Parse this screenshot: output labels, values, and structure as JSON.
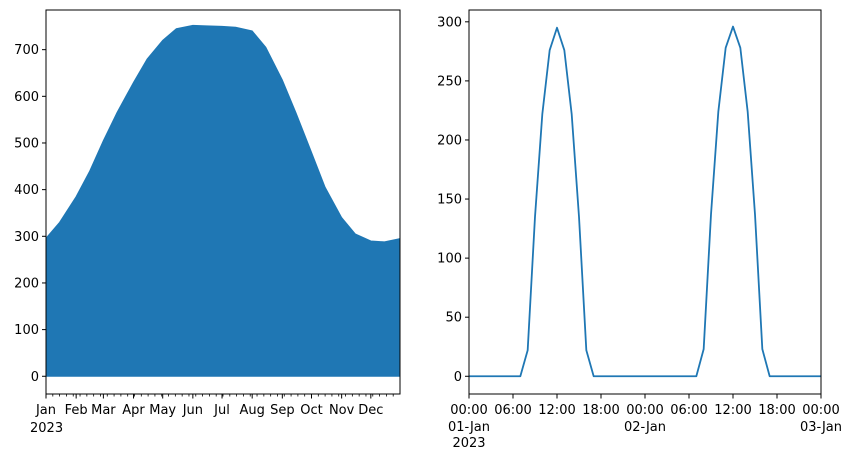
{
  "chart_data": [
    {
      "type": "area",
      "title": "",
      "xlabel": "",
      "ylabel": "",
      "grid": false,
      "xlim": [
        "2023-01-01",
        "2023-12-31"
      ],
      "ylim": [
        -38,
        785
      ],
      "yticks": [
        0,
        100,
        200,
        300,
        400,
        500,
        600,
        700
      ],
      "xticks": [
        {
          "date": "2023-01-01",
          "label": "Jan"
        },
        {
          "date": "2023-02-01",
          "label": "Feb"
        },
        {
          "date": "2023-03-01",
          "label": "Mar"
        },
        {
          "date": "2023-04-01",
          "label": "Apr"
        },
        {
          "date": "2023-05-01",
          "label": "May"
        },
        {
          "date": "2023-06-01",
          "label": "Jun"
        },
        {
          "date": "2023-07-01",
          "label": "Jul"
        },
        {
          "date": "2023-08-01",
          "label": "Aug"
        },
        {
          "date": "2023-09-01",
          "label": "Sep"
        },
        {
          "date": "2023-10-01",
          "label": "Oct"
        },
        {
          "date": "2023-11-01",
          "label": "Nov"
        },
        {
          "date": "2023-12-01",
          "label": "Dec"
        }
      ],
      "x_offset_label": "2023",
      "envelope": {
        "x": [
          "2023-01-01",
          "2023-01-15",
          "2023-02-01",
          "2023-02-15",
          "2023-03-01",
          "2023-03-15",
          "2023-04-01",
          "2023-04-15",
          "2023-05-01",
          "2023-05-15",
          "2023-06-01",
          "2023-06-15",
          "2023-07-01",
          "2023-07-15",
          "2023-08-01",
          "2023-08-15",
          "2023-09-01",
          "2023-09-15",
          "2023-10-01",
          "2023-10-15",
          "2023-11-01",
          "2023-11-15",
          "2023-12-01",
          "2023-12-15",
          "2023-12-31"
        ],
        "upper": [
          296,
          330,
          385,
          440,
          505,
          565,
          630,
          680,
          720,
          745,
          752,
          751,
          750,
          748,
          740,
          705,
          635,
          565,
          480,
          405,
          340,
          305,
          290,
          288,
          295
        ],
        "lower": [
          0,
          0,
          0,
          0,
          0,
          0,
          0,
          0,
          0,
          0,
          0,
          0,
          0,
          0,
          0,
          0,
          0,
          0,
          0,
          0,
          0,
          0,
          0,
          0,
          0
        ]
      },
      "color": "#1f77b4"
    },
    {
      "type": "line",
      "title": "",
      "xlabel": "",
      "ylabel": "",
      "grid": false,
      "xlim": [
        "2023-01-01T00:00",
        "2023-01-03T00:00"
      ],
      "ylim": [
        -15,
        310
      ],
      "yticks": [
        0,
        50,
        100,
        150,
        200,
        250,
        300
      ],
      "xticks": [
        {
          "time": "2023-01-01T00:00",
          "label": "00:00",
          "label2": "01-Jan",
          "label3": "2023"
        },
        {
          "time": "2023-01-01T06:00",
          "label": "06:00",
          "label2": "",
          "label3": ""
        },
        {
          "time": "2023-01-01T12:00",
          "label": "12:00",
          "label2": "",
          "label3": ""
        },
        {
          "time": "2023-01-01T18:00",
          "label": "18:00",
          "label2": "",
          "label3": ""
        },
        {
          "time": "2023-01-02T00:00",
          "label": "00:00",
          "label2": "02-Jan",
          "label3": ""
        },
        {
          "time": "2023-01-02T06:00",
          "label": "06:00",
          "label2": "",
          "label3": ""
        },
        {
          "time": "2023-01-02T12:00",
          "label": "12:00",
          "label2": "",
          "label3": ""
        },
        {
          "time": "2023-01-02T18:00",
          "label": "18:00",
          "label2": "",
          "label3": ""
        },
        {
          "time": "2023-01-03T00:00",
          "label": "00:00",
          "label2": "03-Jan",
          "label3": ""
        }
      ],
      "series": [
        {
          "x": [
            "2023-01-01T00:00",
            "2023-01-01T01:00",
            "2023-01-01T02:00",
            "2023-01-01T03:00",
            "2023-01-01T04:00",
            "2023-01-01T05:00",
            "2023-01-01T06:00",
            "2023-01-01T07:00",
            "2023-01-01T08:00",
            "2023-01-01T09:00",
            "2023-01-01T10:00",
            "2023-01-01T11:00",
            "2023-01-01T12:00",
            "2023-01-01T13:00",
            "2023-01-01T14:00",
            "2023-01-01T15:00",
            "2023-01-01T16:00",
            "2023-01-01T17:00",
            "2023-01-01T18:00",
            "2023-01-01T19:00",
            "2023-01-01T20:00",
            "2023-01-01T21:00",
            "2023-01-01T22:00",
            "2023-01-01T23:00",
            "2023-01-02T00:00",
            "2023-01-02T01:00",
            "2023-01-02T02:00",
            "2023-01-02T03:00",
            "2023-01-02T04:00",
            "2023-01-02T05:00",
            "2023-01-02T06:00",
            "2023-01-02T07:00",
            "2023-01-02T08:00",
            "2023-01-02T09:00",
            "2023-01-02T10:00",
            "2023-01-02T11:00",
            "2023-01-02T12:00",
            "2023-01-02T13:00",
            "2023-01-02T14:00",
            "2023-01-02T15:00",
            "2023-01-02T16:00",
            "2023-01-02T17:00",
            "2023-01-02T18:00",
            "2023-01-02T19:00",
            "2023-01-02T20:00",
            "2023-01-02T21:00",
            "2023-01-02T22:00",
            "2023-01-02T23:00",
            "2023-01-03T00:00"
          ],
          "values": [
            0,
            0,
            0,
            0,
            0,
            0,
            0,
            0,
            22,
            135,
            222,
            276,
            295,
            276,
            222,
            135,
            22,
            0,
            0,
            0,
            0,
            0,
            0,
            0,
            0,
            0,
            0,
            0,
            0,
            0,
            0,
            0,
            23,
            137,
            224,
            278,
            296,
            278,
            224,
            137,
            23,
            0,
            0,
            0,
            0,
            0,
            0,
            0,
            0
          ]
        }
      ],
      "color": "#1f77b4"
    }
  ]
}
